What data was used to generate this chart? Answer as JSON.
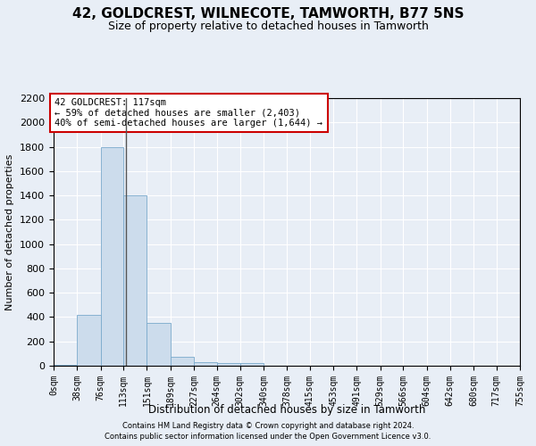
{
  "title": "42, GOLDCREST, WILNECOTE, TAMWORTH, B77 5NS",
  "subtitle": "Size of property relative to detached houses in Tamworth",
  "xlabel": "Distribution of detached houses by size in Tamworth",
  "ylabel": "Number of detached properties",
  "footnote1": "Contains HM Land Registry data © Crown copyright and database right 2024.",
  "footnote2": "Contains public sector information licensed under the Open Government Licence v3.0.",
  "bin_edges": [
    0,
    38,
    76,
    113,
    151,
    189,
    227,
    264,
    302,
    340,
    378,
    415,
    453,
    491,
    529,
    566,
    604,
    642,
    680,
    717,
    755
  ],
  "bar_values": [
    10,
    420,
    1800,
    1400,
    350,
    75,
    30,
    20,
    20,
    0,
    0,
    0,
    0,
    0,
    0,
    0,
    0,
    0,
    0,
    0
  ],
  "bar_color": "#ccdcec",
  "bar_edge_color": "#7aaacc",
  "vline_x": 117,
  "vline_color": "#555555",
  "ylim": [
    0,
    2200
  ],
  "annotation_text": "42 GOLDCREST: 117sqm\n← 59% of detached houses are smaller (2,403)\n40% of semi-detached houses are larger (1,644) →",
  "annotation_box_color": "#ffffff",
  "annotation_box_edge_color": "#cc0000",
  "background_color": "#e8eef6",
  "plot_bg_color": "#e8eef6",
  "grid_color": "#ffffff",
  "title_fontsize": 11,
  "subtitle_fontsize": 9,
  "tick_label_fontsize": 7,
  "ylabel_fontsize": 8,
  "xlabel_fontsize": 8.5,
  "annotation_fontsize": 7.5,
  "footnote_fontsize": 6
}
